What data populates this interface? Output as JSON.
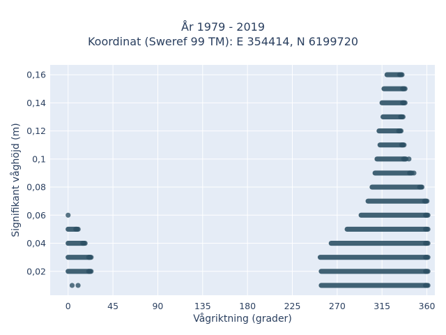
{
  "chart_data": {
    "type": "scatter",
    "title_lines": [
      "År 1979 - 2019",
      "Koordinat (Sweref 99 TM): E 354414, N 6199720"
    ],
    "xlabel": "Vågriktning (grader)",
    "ylabel": "Signifikant våghöjd (m)",
    "xlim": [
      -18,
      368
    ],
    "ylim": [
      0.003,
      0.167
    ],
    "x_ticks": [
      0,
      45,
      90,
      135,
      180,
      225,
      270,
      315,
      360
    ],
    "x_tick_labels": [
      "0",
      "45",
      "90",
      "135",
      "180",
      "225",
      "270",
      "315",
      "360"
    ],
    "y_ticks": [
      0.02,
      0.04,
      0.06,
      0.08,
      0.1,
      0.12,
      0.14,
      0.16
    ],
    "y_tick_labels": [
      "0,02",
      "0,04",
      "0,06",
      "0,08",
      "0,1",
      "0,12",
      "0,14",
      "0,16"
    ],
    "grid": true,
    "marker_color": "#2f5266",
    "plot_background": "#e5ecf6",
    "bands": [
      {
        "y": 0.01,
        "segments": [
          [
            254,
            360
          ]
        ],
        "points": [
          4,
          10,
          359
        ]
      },
      {
        "y": 0.02,
        "segments": [
          [
            0,
            22
          ],
          [
            254,
            360
          ]
        ],
        "points": []
      },
      {
        "y": 0.03,
        "segments": [
          [
            0,
            22
          ],
          [
            253,
            360
          ]
        ],
        "points": []
      },
      {
        "y": 0.04,
        "segments": [
          [
            0,
            16
          ],
          [
            264,
            360
          ]
        ],
        "points": []
      },
      {
        "y": 0.05,
        "segments": [
          [
            0,
            9
          ],
          [
            280,
            360
          ]
        ],
        "points": []
      },
      {
        "y": 0.06,
        "segments": [
          [
            294,
            360
          ]
        ],
        "points": [
          0
        ]
      },
      {
        "y": 0.07,
        "segments": [
          [
            301,
            359
          ]
        ],
        "points": []
      },
      {
        "y": 0.08,
        "segments": [
          [
            305,
            354
          ]
        ],
        "points": []
      },
      {
        "y": 0.09,
        "segments": [
          [
            308,
            344
          ]
        ],
        "points": [
          347
        ]
      },
      {
        "y": 0.1,
        "segments": [
          [
            310,
            338
          ]
        ],
        "points": [
          342
        ]
      },
      {
        "y": 0.11,
        "segments": [
          [
            313,
            336
          ]
        ],
        "points": []
      },
      {
        "y": 0.12,
        "segments": [
          [
            312,
            333
          ]
        ],
        "points": []
      },
      {
        "y": 0.13,
        "segments": [
          [
            316,
            335
          ]
        ],
        "points": []
      },
      {
        "y": 0.14,
        "segments": [
          [
            315,
            337
          ]
        ],
        "points": []
      },
      {
        "y": 0.15,
        "segments": [
          [
            317,
            337
          ]
        ],
        "points": []
      },
      {
        "y": 0.16,
        "segments": [
          [
            320,
            334
          ]
        ],
        "points": []
      }
    ]
  }
}
